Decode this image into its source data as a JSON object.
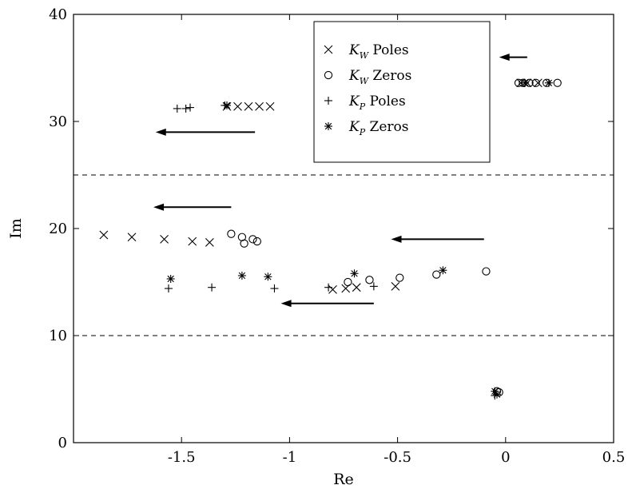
{
  "chart_data": {
    "type": "scatter",
    "title": "",
    "xlabel": "Re",
    "ylabel": "Im",
    "xlim": [
      -2.0,
      0.5
    ],
    "ylim": [
      0,
      40
    ],
    "xticks": [
      -1.5,
      -1,
      -0.5,
      0,
      0.5
    ],
    "xtick_labels": [
      "-1.5",
      "-1",
      "-0.5",
      "0",
      "0.5"
    ],
    "yticks": [
      0,
      10,
      20,
      30,
      40
    ],
    "ytick_labels": [
      "0",
      "10",
      "20",
      "30",
      "40"
    ],
    "grid": false,
    "legend_position": "top-right",
    "legend": [
      {
        "marker": "x",
        "main": "K",
        "sub": "W",
        "text": " Poles"
      },
      {
        "marker": "o",
        "main": "K",
        "sub": "W",
        "text": " Zeros"
      },
      {
        "marker": "+",
        "main": "K",
        "sub": "P",
        "text": " Poles"
      },
      {
        "marker": "*",
        "main": "K",
        "sub": "P",
        "text": " Zeros"
      }
    ],
    "reference_lines": [
      {
        "orientation": "horizontal",
        "y": 25,
        "style": "dashed"
      },
      {
        "orientation": "horizontal",
        "y": 10,
        "style": "dashed"
      }
    ],
    "arrows": [
      {
        "from": [
          0.1,
          36
        ],
        "to": [
          -0.03,
          36
        ]
      },
      {
        "from": [
          -1.16,
          29
        ],
        "to": [
          -1.62,
          29
        ]
      },
      {
        "from": [
          -1.27,
          22
        ],
        "to": [
          -1.63,
          22
        ]
      },
      {
        "from": [
          -0.1,
          19
        ],
        "to": [
          -0.53,
          19
        ]
      },
      {
        "from": [
          -0.61,
          13
        ],
        "to": [
          -1.04,
          13
        ]
      }
    ],
    "series": [
      {
        "name": "K_W Poles",
        "marker": "x",
        "points": [
          [
            -1.86,
            19.4
          ],
          [
            -1.73,
            19.2
          ],
          [
            -1.58,
            19.0
          ],
          [
            -1.45,
            18.8
          ],
          [
            -1.37,
            18.7
          ],
          [
            -1.29,
            31.4
          ],
          [
            -1.24,
            31.4
          ],
          [
            -1.19,
            31.4
          ],
          [
            -1.14,
            31.4
          ],
          [
            -1.09,
            31.4
          ],
          [
            -0.8,
            14.3
          ],
          [
            -0.74,
            14.4
          ],
          [
            -0.69,
            14.5
          ],
          [
            -0.51,
            14.6
          ],
          [
            0.07,
            33.6
          ],
          [
            0.1,
            33.6
          ],
          [
            0.15,
            33.6
          ]
        ]
      },
      {
        "name": "K_W Zeros",
        "marker": "o",
        "points": [
          [
            -1.27,
            19.5
          ],
          [
            -1.22,
            19.2
          ],
          [
            -1.21,
            18.6
          ],
          [
            -1.17,
            19.0
          ],
          [
            -1.15,
            18.8
          ],
          [
            -0.73,
            15.0
          ],
          [
            -0.63,
            15.2
          ],
          [
            -0.49,
            15.4
          ],
          [
            -0.32,
            15.7
          ],
          [
            -0.09,
            16.0
          ],
          [
            0.06,
            33.6
          ],
          [
            0.08,
            33.6
          ],
          [
            0.11,
            33.6
          ],
          [
            0.14,
            33.6
          ],
          [
            0.19,
            33.6
          ],
          [
            0.24,
            33.6
          ],
          [
            -0.04,
            4.8
          ],
          [
            -0.03,
            4.7
          ]
        ]
      },
      {
        "name": "K_P Poles",
        "marker": "+",
        "points": [
          [
            -1.52,
            31.2
          ],
          [
            -1.48,
            31.2
          ],
          [
            -1.46,
            31.3
          ],
          [
            -1.3,
            31.5
          ],
          [
            -1.56,
            14.4
          ],
          [
            -1.36,
            14.5
          ],
          [
            -1.07,
            14.4
          ],
          [
            -0.82,
            14.5
          ],
          [
            -0.61,
            14.6
          ],
          [
            -0.05,
            4.4
          ]
        ]
      },
      {
        "name": "K_P Zeros",
        "marker": "*",
        "points": [
          [
            -1.29,
            31.5
          ],
          [
            -1.55,
            15.3
          ],
          [
            -1.22,
            15.6
          ],
          [
            -1.1,
            15.5
          ],
          [
            -0.7,
            15.8
          ],
          [
            -0.29,
            16.1
          ],
          [
            0.09,
            33.6
          ],
          [
            0.2,
            33.6
          ],
          [
            -0.05,
            4.8
          ],
          [
            -0.04,
            4.5
          ]
        ]
      }
    ]
  }
}
